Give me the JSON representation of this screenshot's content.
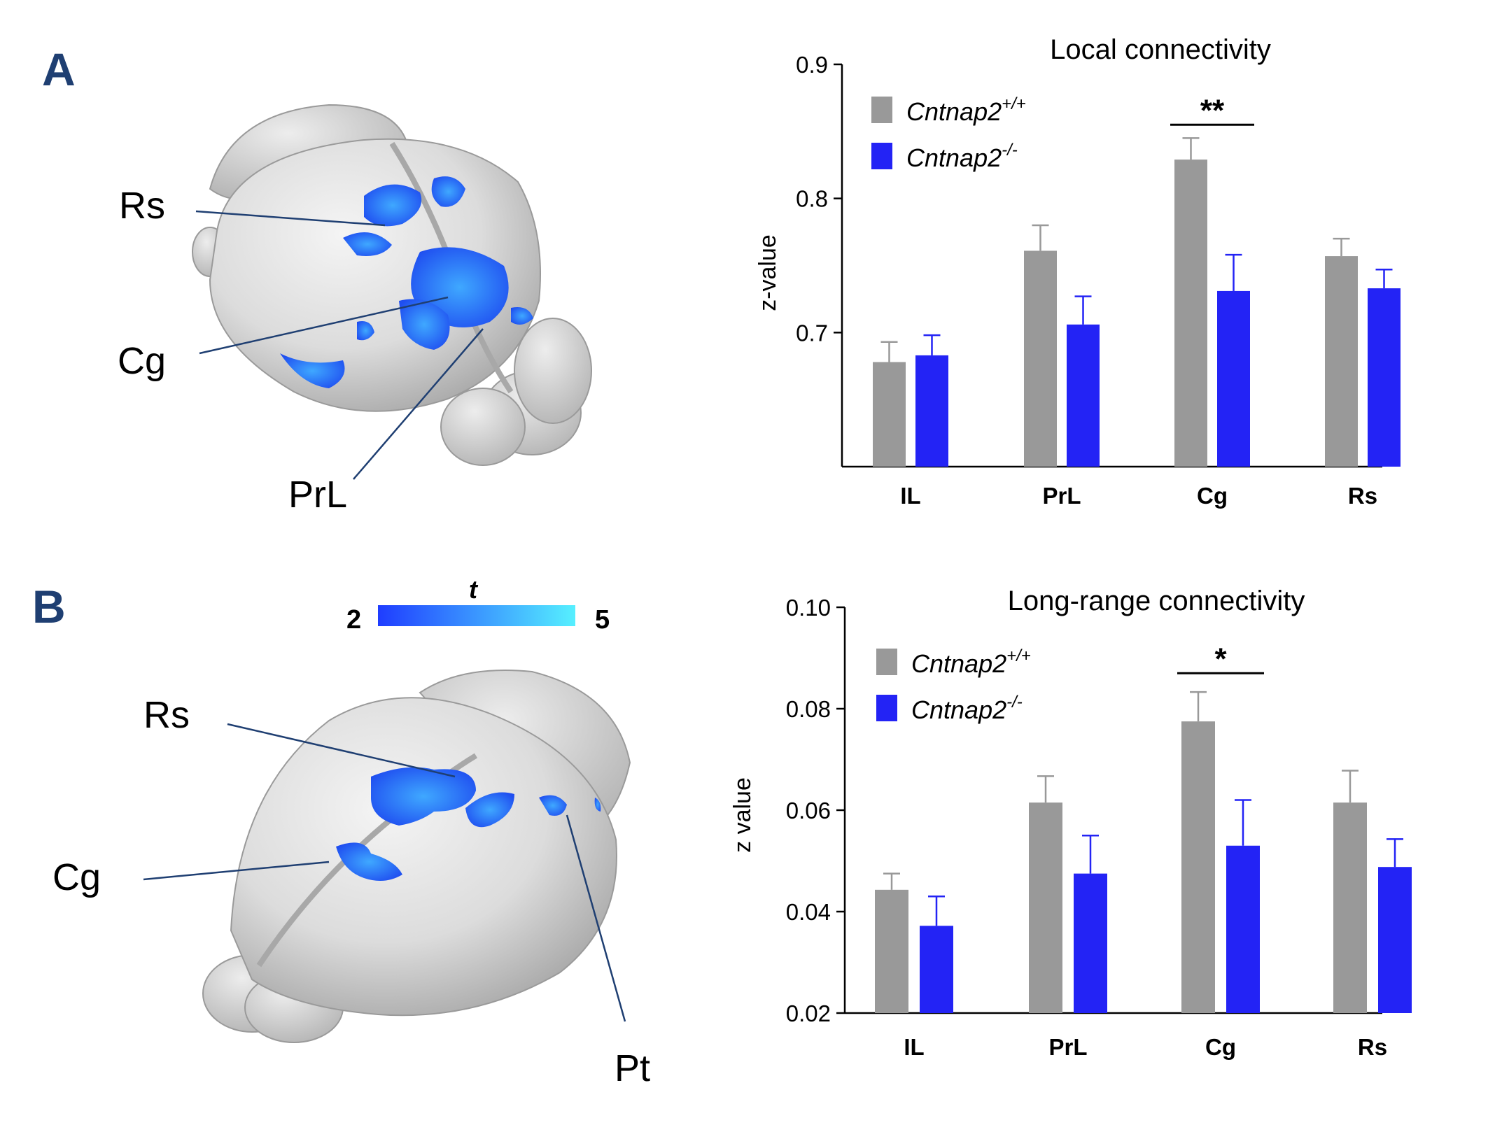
{
  "panels": {
    "a_letter": "A",
    "b_letter": "B"
  },
  "brain_a": {
    "labels": [
      "Rs",
      "Cg",
      "PrL"
    ]
  },
  "brain_b": {
    "labels": [
      "Rs",
      "Cg",
      "Pt"
    ]
  },
  "colorbar": {
    "title": "t",
    "min_label": "2",
    "max_label": "5",
    "color_low": "#1f3dff",
    "color_high": "#56f0ff"
  },
  "colors": {
    "wildtype": "#999999",
    "knockout": "#2323f5",
    "panel_letter": "#1f3f72"
  },
  "chart_data": [
    {
      "type": "bar",
      "title": "Local connectivity",
      "xlabel": "",
      "ylabel": "z-value",
      "categories": [
        "IL",
        "PrL",
        "Cg",
        "Rs"
      ],
      "ylim": [
        0.6,
        0.9
      ],
      "yticks": [
        0.7,
        0.8,
        0.9
      ],
      "ytick_labels": [
        "0.7",
        "0.8",
        "0.9"
      ],
      "legend_position": "top-left",
      "grid": false,
      "series": [
        {
          "name": "Cntnap2",
          "superscript": "+/+",
          "color": "#999999",
          "values": [
            0.678,
            0.761,
            0.829,
            0.757
          ],
          "errors": [
            0.015,
            0.019,
            0.016,
            0.013
          ]
        },
        {
          "name": "Cntnap2",
          "superscript": "-/-",
          "color": "#2323f5",
          "values": [
            0.683,
            0.706,
            0.731,
            0.733
          ],
          "errors": [
            0.015,
            0.021,
            0.027,
            0.014
          ]
        }
      ],
      "significance": [
        {
          "category": "Cg",
          "label": "**",
          "y": 0.855
        }
      ]
    },
    {
      "type": "bar",
      "title": "Long-range connectivity",
      "xlabel": "",
      "ylabel": "z value",
      "categories": [
        "IL",
        "PrL",
        "Cg",
        "Rs"
      ],
      "ylim": [
        0.02,
        0.1
      ],
      "yticks": [
        0.02,
        0.04,
        0.06,
        0.08,
        0.1
      ],
      "ytick_labels": [
        "0.02",
        "0.04",
        "0.06",
        "0.08",
        "0.10"
      ],
      "legend_position": "top-left",
      "grid": false,
      "series": [
        {
          "name": "Cntnap2",
          "superscript": "+/+",
          "color": "#999999",
          "values": [
            0.0443,
            0.0615,
            0.0775,
            0.0615
          ],
          "errors": [
            0.0032,
            0.0052,
            0.0058,
            0.0063
          ]
        },
        {
          "name": "Cntnap2",
          "superscript": "-/-",
          "color": "#2323f5",
          "values": [
            0.0372,
            0.0475,
            0.053,
            0.0488
          ],
          "errors": [
            0.0058,
            0.0075,
            0.009,
            0.0055
          ]
        }
      ],
      "significance": [
        {
          "category": "Cg",
          "label": "*",
          "y": 0.087
        }
      ]
    }
  ]
}
